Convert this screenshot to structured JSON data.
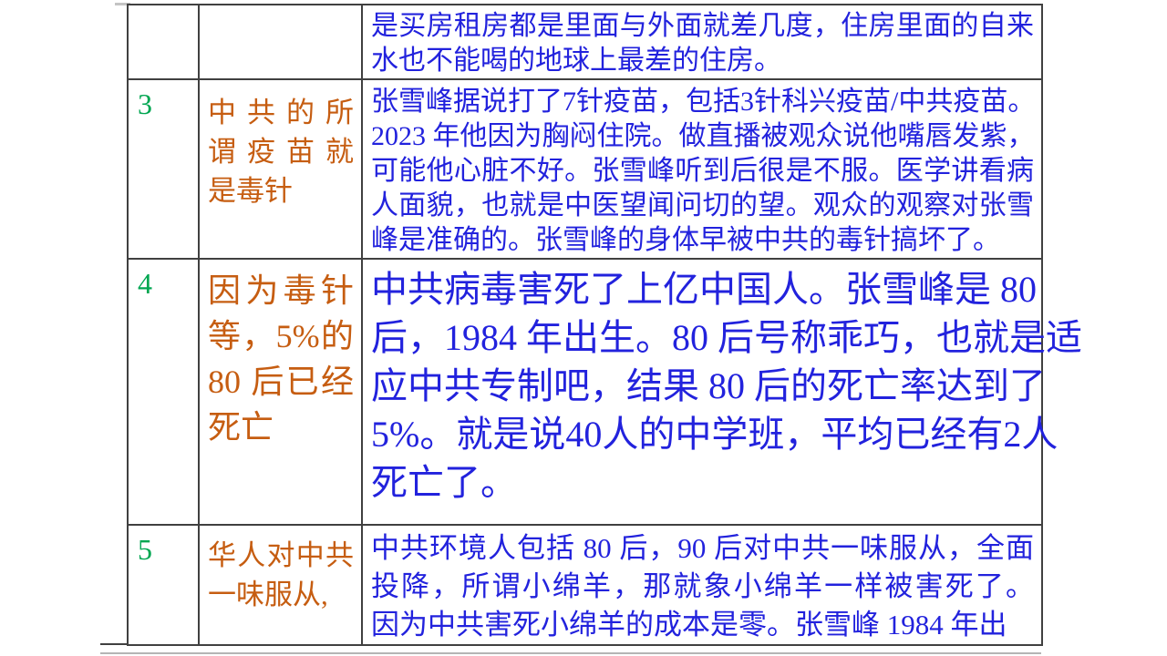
{
  "document": {
    "kind": "table-page",
    "language": "zh"
  },
  "colors": {
    "row_number": "#00A651",
    "topic": "#C65D11",
    "content": "#2222DD",
    "border": "#404040",
    "next_page_line": "#b5b5b5",
    "anchor_mark": "#c4c4c4",
    "background": "#ffffff"
  },
  "table": {
    "rows": [
      {
        "num": "",
        "topic_lines": [],
        "content_lines": [
          "是买房租房都是里面与外面就差几度，住房里面的自来",
          "水也不能喝的地球上最差的住房。"
        ]
      },
      {
        "num": "3",
        "topic_lines": [
          "中共的所",
          "谓疫苗就",
          "是毒针"
        ],
        "content_lines": [
          "张雪峰据说打了7针疫苗，包括3针科兴疫苗/中共疫苗。",
          "2023 年他因为胸闷住院。做直播被观众说他嘴唇发紫，",
          "可能他心脏不好。张雪峰听到后很是不服。医学讲看病",
          "人面貌，也就是中医望闻问切的望。观众的观察对张雪",
          "峰是准确的。张雪峰的身体早被中共的毒针搞坏了。"
        ]
      },
      {
        "num": "4",
        "topic_lines": [
          "因为毒针",
          "等，5%的",
          "80 后已经",
          "死亡"
        ],
        "content_lines": [
          "中共病毒害死了上亿中国人。张雪峰是 80",
          "后，1984 年出生。80 后号称乖巧，也就是适",
          "应中共专制吧，结果 80 后的死亡率达到了",
          "5%。就是说40人的中学班，平均已经有2人",
          "死亡了。"
        ]
      },
      {
        "num": "5",
        "topic_lines": [
          "华人对中共",
          "一味服从,"
        ],
        "content_lines": [
          "中共环境人包括 80 后，90 后对中共一味服从，全面",
          "投降，所谓小绵羊，那就象小绵羊一样被害死了。",
          "因为中共害死小绵羊的成本是零。张雪峰 1984 年出"
        ]
      }
    ]
  }
}
